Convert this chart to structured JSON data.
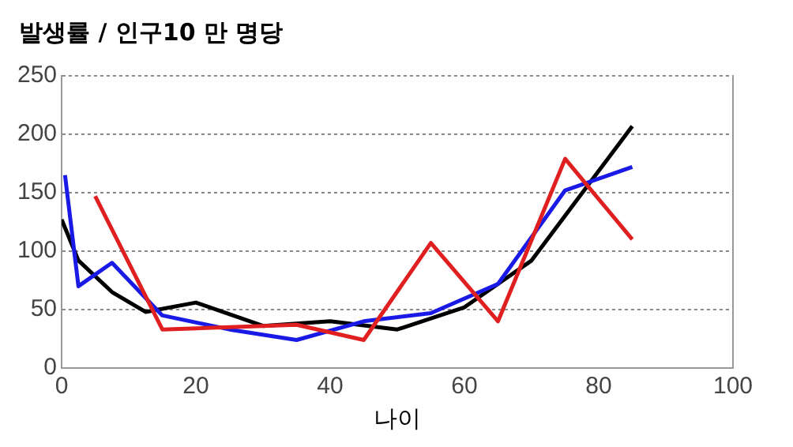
{
  "chart_data": {
    "type": "line",
    "title": "발생률 / 인구10 만 명당",
    "xlabel": "나이",
    "xlim": [
      0,
      100
    ],
    "xticks": [
      0,
      20,
      40,
      60,
      80,
      100
    ],
    "ylim": [
      0,
      250
    ],
    "yticks": [
      0,
      50,
      100,
      150,
      200,
      250
    ],
    "grid": "y",
    "marker": "none",
    "line_style": "solid",
    "series": [
      {
        "color": "#e02020",
        "x": [
          5,
          15,
          25,
          35,
          45,
          55,
          65,
          75,
          85
        ],
        "values": [
          147,
          33,
          35,
          37,
          24,
          107,
          40,
          179,
          110
        ]
      },
      {
        "color": "#1a1ae6",
        "x": [
          0.5,
          2.5,
          7.5,
          15,
          25,
          35,
          45,
          55,
          65,
          75,
          85
        ],
        "values": [
          165,
          70,
          90,
          45,
          33,
          24,
          40,
          47,
          72,
          152,
          172
        ]
      },
      {
        "color": "#000000",
        "x": [
          0,
          2.5,
          7.5,
          12.5,
          20,
          30,
          40,
          50,
          60,
          65,
          70,
          85
        ],
        "values": [
          127,
          92,
          65,
          48,
          56,
          36,
          40,
          33,
          52,
          72,
          92,
          207
        ]
      }
    ]
  }
}
